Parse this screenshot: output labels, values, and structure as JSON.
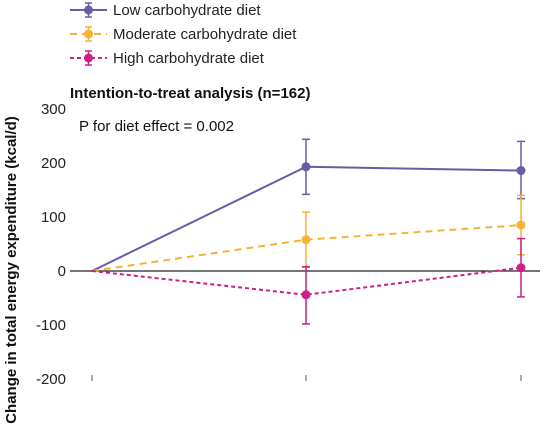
{
  "chart_data": {
    "type": "line",
    "title": "Intention-to-treat analysis (n=162)",
    "annotation": "P for diet effect = 0.002",
    "ylabel": "Change in total energy expenditure (kcal/d)",
    "xlabel": "",
    "x": [
      0,
      1,
      2
    ],
    "ylim": [
      -200,
      300
    ],
    "yticks": [
      -200,
      -100,
      0,
      100,
      200,
      300
    ],
    "ytick_labels": [
      "-200",
      "-100",
      "0",
      "100",
      "200",
      "300"
    ],
    "grid": false,
    "legend_position": "top-left",
    "series": [
      {
        "name": "Low carbohydrate diet",
        "color": "#6a5aa8",
        "line_style": "solid",
        "values": [
          0,
          193,
          186
        ],
        "error_low": [
          null,
          142,
          134
        ],
        "error_high": [
          null,
          244,
          240
        ]
      },
      {
        "name": "Moderate carbohydrate diet",
        "color": "#f5b335",
        "line_style": "dashed",
        "values": [
          0,
          58,
          85
        ],
        "error_low": [
          null,
          7,
          30
        ],
        "error_high": [
          null,
          109,
          140
        ]
      },
      {
        "name": "High carbohydrate diet",
        "color": "#cc1f8a",
        "line_style": "dotted",
        "values": [
          0,
          -44,
          6
        ],
        "error_low": [
          null,
          -98,
          -48
        ],
        "error_high": [
          null,
          8,
          60
        ]
      }
    ]
  }
}
